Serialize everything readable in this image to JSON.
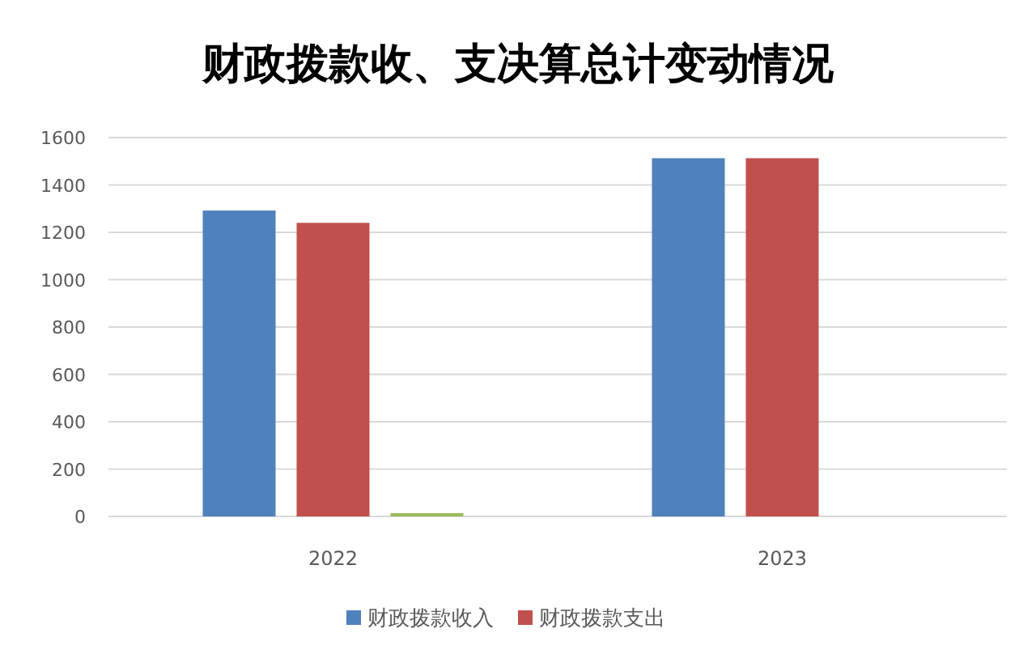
{
  "chart_data": {
    "type": "bar",
    "title": "财政拨款收、支决算总计变动情况",
    "categories": [
      "2022",
      "2023"
    ],
    "series": [
      {
        "name": "财政拨款收入",
        "color": "#4f81bd",
        "values": [
          1292,
          1513
        ]
      },
      {
        "name": "财政拨款支出",
        "color": "#c0504d",
        "values": [
          1240,
          1513
        ]
      },
      {
        "color": "#9bbb59",
        "values": [
          14,
          null
        ]
      }
    ],
    "ylim": [
      0,
      1600
    ],
    "yticks": [
      0,
      200,
      400,
      600,
      800,
      1000,
      1200,
      1400,
      1600
    ],
    "grid": "y",
    "legend": "bottom"
  }
}
